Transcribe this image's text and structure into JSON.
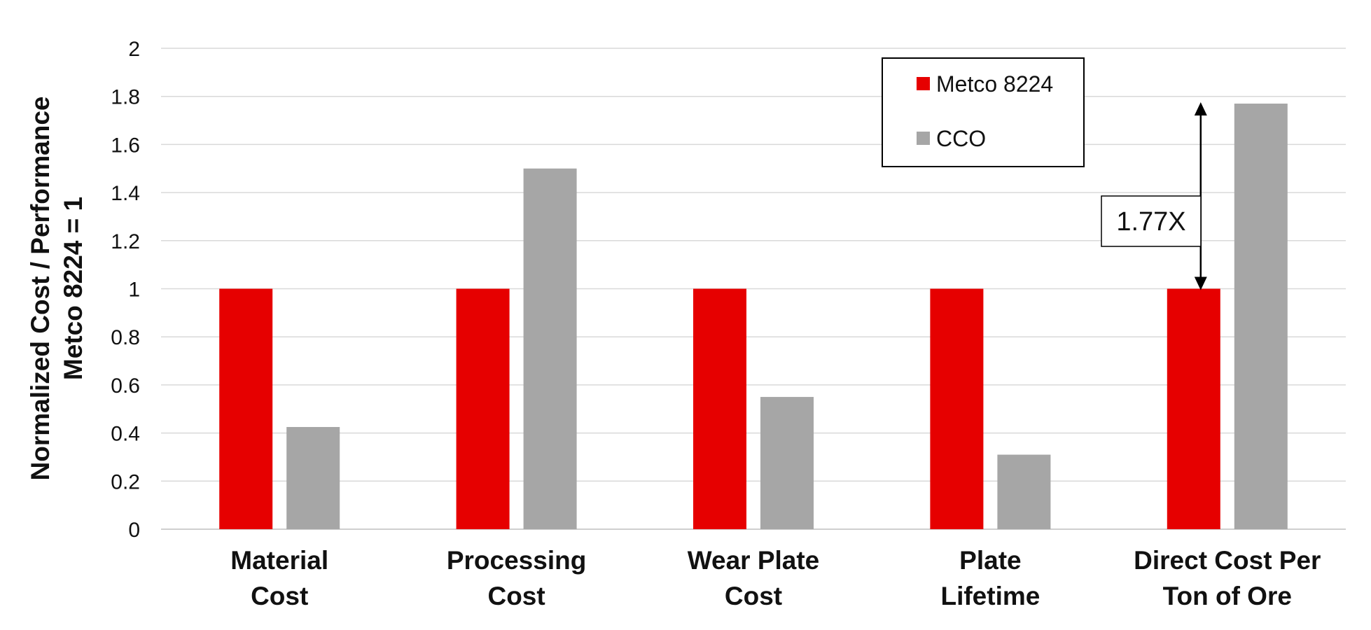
{
  "chart_data": {
    "type": "bar",
    "title": "",
    "categories": [
      [
        "Material",
        "Cost"
      ],
      [
        "Processing",
        "Cost"
      ],
      [
        "Wear Plate",
        "Cost"
      ],
      [
        "Plate",
        "Lifetime"
      ],
      [
        "Direct Cost Per",
        "Ton of Ore"
      ]
    ],
    "series": [
      {
        "name": "Metco 8224",
        "color": "#e60000",
        "values": [
          1,
          1,
          1,
          1,
          1
        ]
      },
      {
        "name": "CCO",
        "color": "#a6a6a6",
        "values": [
          0.425,
          1.5,
          0.55,
          0.31,
          1.77
        ]
      }
    ],
    "ylabel": [
      "Normalized Cost / Performance",
      "Metco 8224 = 1"
    ],
    "xlabel": "",
    "ylim": [
      0,
      2
    ],
    "yticks": [
      0,
      0.2,
      0.4,
      0.6,
      0.8,
      1,
      1.2,
      1.4,
      1.6,
      1.8,
      2
    ],
    "grid": true,
    "legend_position": "top-right",
    "annotation": {
      "text": "1.77X",
      "category_index": 4,
      "from": 1,
      "to": 1.77
    }
  }
}
